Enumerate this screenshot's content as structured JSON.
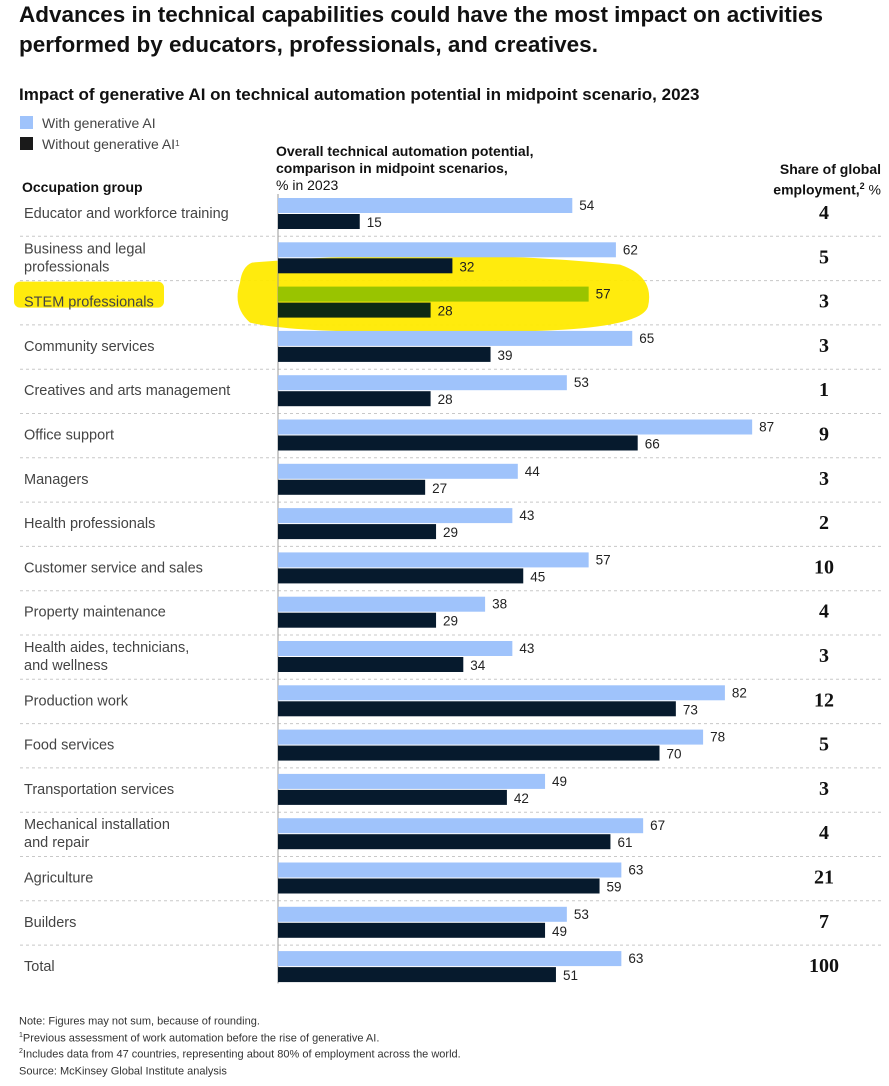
{
  "headline": "Advances in technical capabilities could have the most impact on activities performed by educators, professionals, and creatives.",
  "colors": {
    "with_ai": "#9fc3fb",
    "without_ai": "#061a2d",
    "highlight": "#ffea00",
    "highlight_bar_light": "#99c400",
    "highlight_bar_dark": "#0d2a14"
  },
  "chart_data": {
    "type": "bar",
    "orientation": "horizontal",
    "title": "Impact of generative AI on technical automation potential in midpoint scenario, 2023",
    "legend": [
      {
        "label": "With generative AI",
        "note": ""
      },
      {
        "label": "Without generative AI",
        "note": "1"
      }
    ],
    "category_header": "Occupation group",
    "value_header_bold": "Overall technical automation potential, comparison in midpoint scenarios,",
    "value_header_unit": "% in 2023",
    "share_header": "Share of global employment,",
    "share_header_note": "2",
    "share_header_unit": "%",
    "xlim": [
      0,
      100
    ],
    "categories": [
      [
        "Educator and workforce training"
      ],
      [
        "Business and legal",
        "professionals"
      ],
      [
        "STEM professionals"
      ],
      [
        "Community services"
      ],
      [
        "Creatives and arts management"
      ],
      [
        "Office support"
      ],
      [
        "Managers"
      ],
      [
        "Health professionals"
      ],
      [
        "Customer service and sales"
      ],
      [
        "Property maintenance"
      ],
      [
        "Health aides, technicians,",
        "and wellness"
      ],
      [
        "Production work"
      ],
      [
        "Food services"
      ],
      [
        "Transportation services"
      ],
      [
        "Mechanical installation",
        "and repair"
      ],
      [
        "Agriculture"
      ],
      [
        "Builders"
      ],
      [
        "Total"
      ]
    ],
    "series": [
      {
        "name": "With generative AI",
        "values": [
          54,
          62,
          57,
          65,
          53,
          87,
          44,
          43,
          57,
          38,
          43,
          82,
          78,
          49,
          67,
          63,
          53,
          63
        ]
      },
      {
        "name": "Without generative AI",
        "values": [
          15,
          32,
          28,
          39,
          28,
          66,
          27,
          29,
          45,
          29,
          34,
          73,
          70,
          42,
          61,
          59,
          49,
          51
        ]
      }
    ],
    "share_of_global_employment": [
      4,
      5,
      3,
      3,
      1,
      9,
      3,
      2,
      10,
      4,
      3,
      12,
      5,
      3,
      4,
      21,
      7,
      100
    ],
    "highlighted_category": "STEM professionals"
  },
  "notes": [
    {
      "sup": "",
      "text": "Note: Figures may not sum, because of rounding."
    },
    {
      "sup": "1",
      "text": "Previous assessment of work automation before the rise of generative AI."
    },
    {
      "sup": "2",
      "text": "Includes data from 47 countries, representing about 80% of employment across the world."
    },
    {
      "sup": "",
      "text": "Source: McKinsey Global Institute analysis"
    }
  ]
}
